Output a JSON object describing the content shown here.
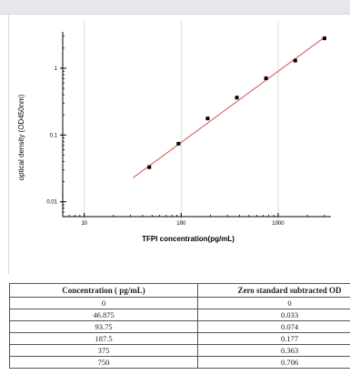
{
  "chart_data": {
    "type": "scatter",
    "xscale": "log",
    "yscale": "log",
    "xlabel": "TFPI  concentration(pg/mL)",
    "ylabel": "optical density (OD450nm)",
    "xlim": [
      6,
      3500
    ],
    "ylim": [
      0.006,
      3.5
    ],
    "x_ticks": [
      {
        "value": 10,
        "label": "10"
      },
      {
        "value": 100,
        "label": "100"
      },
      {
        "value": 1000,
        "label": "1000"
      }
    ],
    "y_ticks": [
      {
        "value": 0.01,
        "label": "0.01"
      },
      {
        "value": 0.1,
        "label": "0.1"
      },
      {
        "value": 1,
        "label": "1"
      }
    ],
    "grid": "vertical",
    "series": [
      {
        "points": [
          {
            "x": 46.875,
            "y": 0.033
          },
          {
            "x": 93.75,
            "y": 0.074
          },
          {
            "x": 187.5,
            "y": 0.177
          },
          {
            "x": 375,
            "y": 0.363
          },
          {
            "x": 750,
            "y": 0.706
          },
          {
            "x": 1500,
            "y": 1.3
          },
          {
            "x": 3000,
            "y": 2.8
          }
        ],
        "marker_color": "#000000"
      }
    ],
    "fit_line": {
      "x": [
        32,
        3100
      ],
      "y": [
        0.023,
        3.0
      ],
      "color": "#d9534f"
    }
  },
  "table": {
    "headers": [
      "Concentration ( pg/mL)",
      "Zero standard subtracted OD"
    ],
    "rows": [
      [
        "0",
        "0"
      ],
      [
        "46.875",
        "0.033"
      ],
      [
        "93.75",
        "0.074"
      ],
      [
        "187.5",
        "0.177"
      ],
      [
        "375",
        "0.363"
      ],
      [
        "750",
        "0.706"
      ]
    ]
  }
}
